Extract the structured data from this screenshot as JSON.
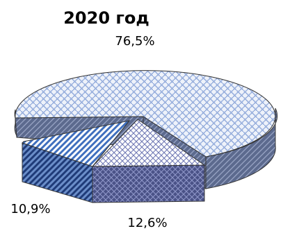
{
  "chart_data": {
    "type": "pie",
    "title": "2020 год",
    "slices": [
      {
        "label": "76,5%",
        "value": 76.5,
        "pattern": "basket-weave",
        "color": "#8ea8da"
      },
      {
        "label": "12,6%",
        "value": 12.6,
        "pattern": "crosshatch",
        "color": "#6f78b4"
      },
      {
        "label": "10,9%",
        "value": 10.9,
        "pattern": "diagonal-stripes",
        "color": "#3f6fbe"
      }
    ],
    "three_d": true,
    "exploded_slices": [
      "12,6%",
      "10,9%"
    ]
  }
}
